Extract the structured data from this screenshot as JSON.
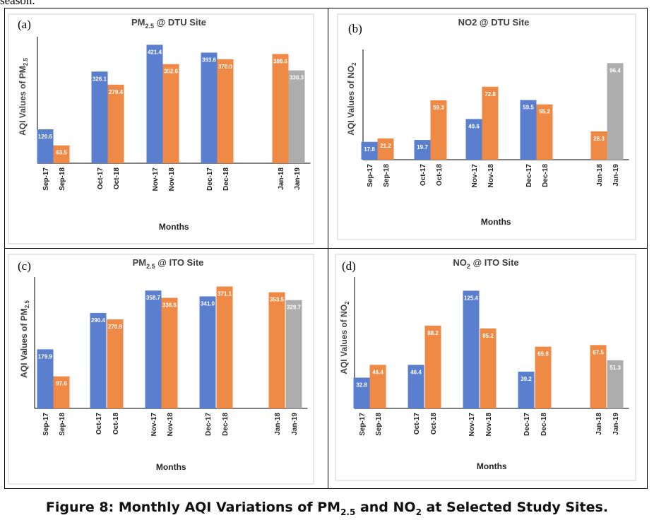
{
  "top_fragment": "season.",
  "caption": {
    "prefix": "Figure 8: Monthly AQI Variations of PM",
    "sub1": "2.5",
    "mid": " and NO",
    "sub2": "2",
    "suffix": " at Selected Study Sites."
  },
  "colors": {
    "blue": "#5b7fcf",
    "orange": "#ee8a45",
    "gray": "#adadad"
  },
  "chart_data": [
    {
      "type": "bar",
      "panel_label": "(a)",
      "title": "PM",
      "title_sub": "2.5",
      "title_rest": " @ DTU Site",
      "ylabel": "AQI Values of PM",
      "ylabel_sub": "2.5",
      "xlabel": "Months",
      "ylim": [
        0,
        450
      ],
      "categories": [
        "Sep-17",
        "Sep-18",
        "Oct-17",
        "Oct-18",
        "Nov-17",
        "Nov-18",
        "Dec-17",
        "Dec-18",
        "Jan-18",
        "Jan-19"
      ],
      "values": [
        120.6,
        63.5,
        326.1,
        279.4,
        421.4,
        352.6,
        393.6,
        370.0,
        388.6,
        330.3
      ],
      "value_labels": [
        "120.6",
        "63.5",
        "326.1",
        "279.4",
        "421.4",
        "352.6",
        "393.6",
        "370.0",
        "388.6",
        "330.3"
      ],
      "bar_colors": [
        "blue",
        "orange",
        "blue",
        "orange",
        "blue",
        "orange",
        "blue",
        "orange",
        "orange",
        "gray"
      ]
    },
    {
      "type": "bar",
      "panel_label": "(b)",
      "title": "NO2 @ DTU Site",
      "title_sub": "",
      "title_rest": "",
      "ylabel": "AQI Values of NO",
      "ylabel_sub": "2",
      "xlabel": "Months",
      "ylim": [
        0,
        110
      ],
      "categories": [
        "Sep-17",
        "Sep-18",
        "Oct-17",
        "Oct-18",
        "Nov-17",
        "Nov-18",
        "Dec-17",
        "Dec-18",
        "Jan-18",
        "Jan-19"
      ],
      "values": [
        17.8,
        21.2,
        19.7,
        59.3,
        40.6,
        72.8,
        59.5,
        55.2,
        28.3,
        96.4
      ],
      "value_labels": [
        "17.8",
        "21.2",
        "19.7",
        "59.3",
        "40.6",
        "72.8",
        "59.5",
        "55.2",
        "28.3",
        "96.4"
      ],
      "bar_colors": [
        "blue",
        "orange",
        "blue",
        "orange",
        "blue",
        "orange",
        "blue",
        "orange",
        "orange",
        "gray"
      ]
    },
    {
      "type": "bar",
      "panel_label": "(c)",
      "title": "PM",
      "title_sub": "2.5",
      "title_rest": " @ ITO Site",
      "ylabel": "AQI Values of PM",
      "ylabel_sub": "2.5",
      "xlabel": "Months",
      "ylim": [
        0,
        400
      ],
      "categories": [
        "Sep-17",
        "Sep-18",
        "Oct-17",
        "Oct-18",
        "Nov-17",
        "Nov-18",
        "Dec-17",
        "Dec-18",
        "Jan-18",
        "Jan-19"
      ],
      "values": [
        179.9,
        97.6,
        290.4,
        270.9,
        358.7,
        336.6,
        341.0,
        371.1,
        353.5,
        329.7
      ],
      "value_labels": [
        "179.9",
        "97.6",
        "290.4",
        "270.9",
        "358.7",
        "336.6",
        "341.0",
        "371.1",
        "353.5",
        "329.7"
      ],
      "bar_colors": [
        "blue",
        "orange",
        "blue",
        "orange",
        "blue",
        "orange",
        "blue",
        "orange",
        "orange",
        "gray"
      ]
    },
    {
      "type": "bar",
      "panel_label": "(d)",
      "title": "NO",
      "title_sub": "2",
      "title_rest": " @ ITO Site",
      "ylabel": "AQI Values of NO",
      "ylabel_sub": "2",
      "xlabel": "Months",
      "ylim": [
        0,
        140
      ],
      "categories": [
        "Sep-17",
        "Sep-18",
        "Oct-17",
        "Oct-18",
        "Nov-17",
        "Nov-18",
        "Dec-17",
        "Dec-18",
        "Jan-18",
        "Jan-19"
      ],
      "values": [
        32.8,
        46.4,
        46.4,
        88.2,
        125.4,
        85.2,
        39.2,
        65.8,
        67.5,
        51.3
      ],
      "value_labels": [
        "32.8",
        "46.4",
        "46.4",
        "88.2",
        "125.4",
        "85.2",
        "39.2",
        "65.8",
        "67.5",
        "51.3"
      ],
      "bar_colors": [
        "blue",
        "orange",
        "blue",
        "orange",
        "blue",
        "orange",
        "blue",
        "orange",
        "orange",
        "gray"
      ]
    }
  ]
}
